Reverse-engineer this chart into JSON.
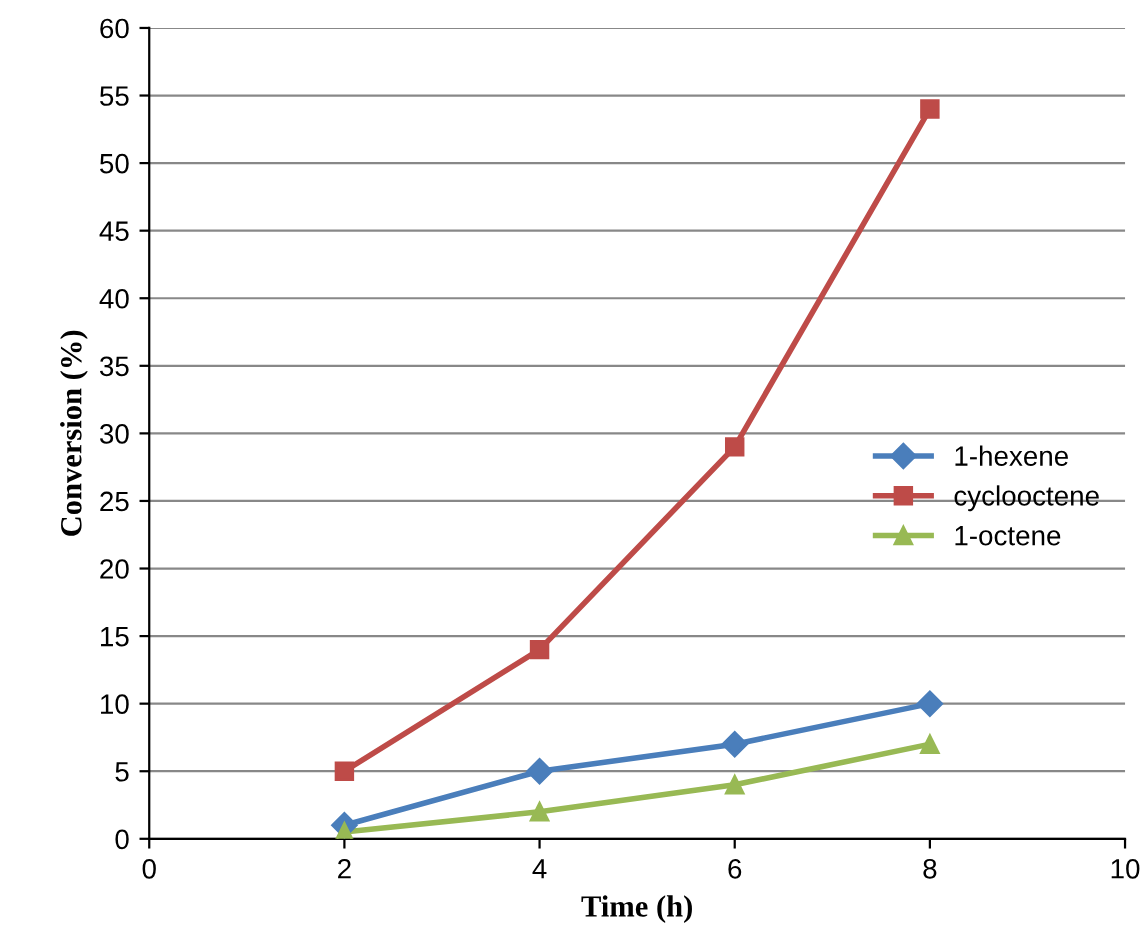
{
  "chart_data": {
    "type": "line",
    "xlabel": "Time (h)",
    "ylabel": "Conversion (%)",
    "x": [
      2,
      4,
      6,
      8
    ],
    "series": [
      {
        "name": "1-hexene",
        "color": "#4a7ebb",
        "marker": "diamond",
        "values": [
          1,
          5,
          7,
          10
        ]
      },
      {
        "name": "cyclooctene",
        "color": "#be4b48",
        "marker": "square",
        "values": [
          5,
          14,
          29,
          54
        ]
      },
      {
        "name": "1-octene",
        "color": "#98b954",
        "marker": "triangle",
        "values": [
          0.5,
          2,
          4,
          7
        ]
      }
    ],
    "xlim": [
      0,
      10
    ],
    "xticks": [
      0,
      2,
      4,
      6,
      8,
      10
    ],
    "ylim": [
      0,
      60
    ],
    "yticks": [
      0,
      5,
      10,
      15,
      20,
      25,
      30,
      35,
      40,
      45,
      50,
      55,
      60
    ],
    "grid": "y",
    "legend": "right",
    "line_style": "solid"
  }
}
